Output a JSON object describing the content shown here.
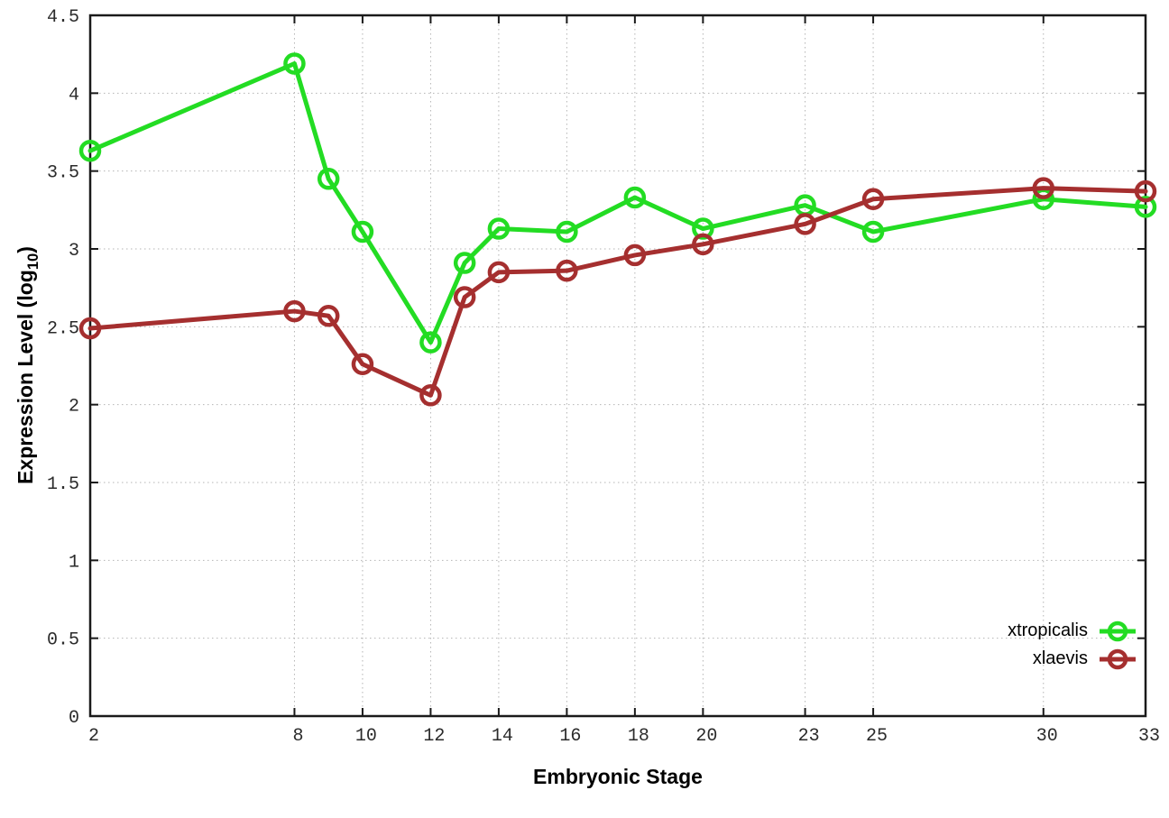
{
  "axis_titles": {
    "x": "Embryonic Stage",
    "y_main": "Expression Level (log",
    "y_sub": "10",
    "y_close": ")"
  },
  "chart_data": {
    "type": "line",
    "title": "",
    "xlabel": "Embryonic Stage",
    "ylabel": "Expression Level (log10)",
    "x": [
      2,
      8,
      9,
      10,
      12,
      13,
      14,
      16,
      18,
      20,
      23,
      25,
      30,
      33
    ],
    "xticks": [
      2,
      8,
      10,
      12,
      14,
      16,
      18,
      20,
      23,
      25,
      30,
      33
    ],
    "yticks": [
      0,
      0.5,
      1,
      1.5,
      2,
      2.5,
      3,
      3.5,
      4,
      4.5
    ],
    "xlim": [
      2,
      33
    ],
    "ylim": [
      0,
      4.5
    ],
    "grid": true,
    "grid_style": "dotted",
    "legend_position": "bottom-right",
    "marker": "open-circle",
    "series": [
      {
        "name": "xtropicalis",
        "color": "#23dc23",
        "values": [
          3.63,
          4.19,
          3.45,
          3.11,
          2.4,
          2.91,
          3.13,
          3.11,
          3.33,
          3.13,
          3.28,
          3.11,
          3.32,
          3.27
        ]
      },
      {
        "name": "xlaevis",
        "color": "#a52f2f",
        "values": [
          2.49,
          2.6,
          2.57,
          2.26,
          2.06,
          2.69,
          2.85,
          2.86,
          2.96,
          3.03,
          3.16,
          3.32,
          3.39,
          3.37
        ]
      }
    ],
    "colors": {
      "grid": "#b4b4b4",
      "axis": "#1a1a1a",
      "tick_text": "#2b2b2b",
      "background": "#ffffff"
    }
  },
  "legend": {
    "items": [
      {
        "label": "xtropicalis"
      },
      {
        "label": "xlaevis"
      }
    ]
  }
}
